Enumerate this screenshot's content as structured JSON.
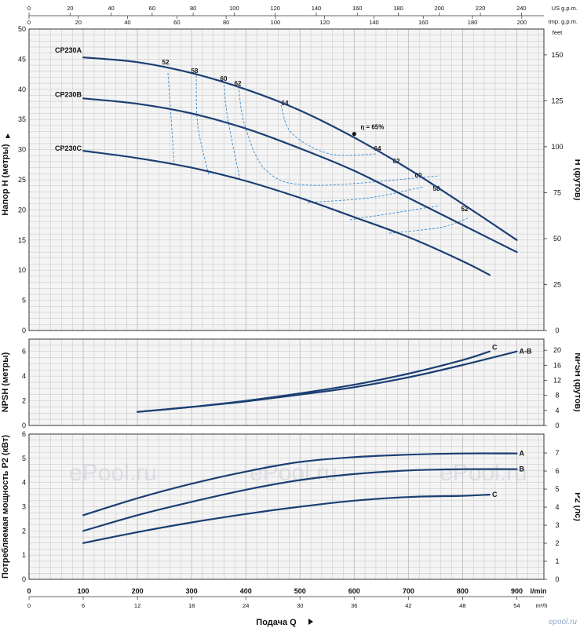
{
  "chart_data": [
    {
      "type": "line",
      "ylabel": "Напор H (метры)",
      "ylabel_right": "H (футов)",
      "ylim": [
        0,
        50
      ],
      "yticks": [
        0,
        5,
        10,
        15,
        20,
        25,
        30,
        35,
        40,
        45,
        50
      ],
      "yticks_right": [
        0,
        25,
        50,
        75,
        100,
        125,
        150
      ],
      "right_unit": "feet",
      "x_unit": "l/min",
      "series": [
        {
          "name": "CP230A",
          "x": [
            100,
            200,
            300,
            400,
            500,
            600,
            700,
            800,
            900
          ],
          "values": [
            45.3,
            44.5,
            42.7,
            40.0,
            36.5,
            32.0,
            26.8,
            21.0,
            15.0
          ]
        },
        {
          "name": "CP230B",
          "x": [
            100,
            200,
            300,
            400,
            500,
            600,
            700,
            800,
            900
          ],
          "values": [
            38.5,
            37.6,
            36.0,
            33.5,
            30.2,
            26.5,
            22.0,
            17.5,
            13.0
          ]
        },
        {
          "name": "CP230C",
          "x": [
            100,
            200,
            300,
            400,
            500,
            600,
            700,
            800,
            850
          ],
          "values": [
            29.8,
            28.6,
            27.0,
            24.8,
            22.0,
            18.8,
            15.5,
            11.5,
            9.2
          ]
        }
      ],
      "efficiency_marker": {
        "label": "η = 65%",
        "x": 600,
        "y": 32.6
      },
      "efficiency_labels": [
        "52",
        "58",
        "60",
        "62",
        "64",
        "64",
        "62",
        "60",
        "58",
        "52"
      ]
    },
    {
      "type": "line",
      "ylabel": "NPSH (метры)",
      "ylabel_right": "NPSH (футов)",
      "ylim": [
        0,
        7
      ],
      "yticks": [
        0,
        2,
        4,
        6
      ],
      "yticks_right": [
        0,
        4,
        8,
        12,
        16,
        20
      ],
      "series": [
        {
          "name": "C",
          "x": [
            200,
            300,
            400,
            500,
            600,
            700,
            800,
            850
          ],
          "values": [
            1.1,
            1.5,
            2.0,
            2.6,
            3.3,
            4.2,
            5.3,
            6.0
          ]
        },
        {
          "name": "A-B",
          "x": [
            200,
            300,
            400,
            500,
            600,
            700,
            800,
            900
          ],
          "values": [
            1.1,
            1.5,
            1.95,
            2.5,
            3.1,
            3.9,
            4.9,
            6.0
          ]
        }
      ]
    },
    {
      "type": "line",
      "ylabel": "Потребляемая мощность P2 (кВт)",
      "ylabel_right": "P2 (лс)",
      "ylim": [
        0,
        6
      ],
      "yticks": [
        0,
        1,
        2,
        3,
        4,
        5,
        6
      ],
      "yticks_right": [
        0,
        1,
        2,
        3,
        4,
        5,
        6,
        7
      ],
      "xlabel": "Подача Q",
      "xlim": [
        0,
        950
      ],
      "xticks_lmin": [
        0,
        100,
        200,
        300,
        400,
        500,
        600,
        700,
        800,
        900
      ],
      "xticks_m3h": [
        0,
        6,
        12,
        18,
        24,
        30,
        36,
        42,
        48,
        54
      ],
      "x_unit_bottom": "m³/h",
      "xticks_us_gpm": [
        0,
        20,
        40,
        60,
        80,
        100,
        120,
        140,
        160,
        180,
        200,
        220,
        240
      ],
      "xticks_imp_gpm": [
        0,
        20,
        40,
        60,
        80,
        100,
        120,
        140,
        160,
        180,
        200
      ],
      "top_unit_us": "US g.p.m.",
      "top_unit_imp": "Imp. g.p.m.",
      "series": [
        {
          "name": "A",
          "x": [
            100,
            200,
            300,
            400,
            500,
            600,
            700,
            800,
            900
          ],
          "values": [
            2.65,
            3.35,
            3.95,
            4.45,
            4.85,
            5.05,
            5.15,
            5.2,
            5.2
          ]
        },
        {
          "name": "B",
          "x": [
            100,
            200,
            300,
            400,
            500,
            600,
            700,
            800,
            900
          ],
          "values": [
            2.0,
            2.65,
            3.2,
            3.7,
            4.1,
            4.35,
            4.5,
            4.55,
            4.55
          ]
        },
        {
          "name": "C",
          "x": [
            100,
            200,
            300,
            400,
            500,
            600,
            700,
            800,
            850
          ],
          "values": [
            1.5,
            1.95,
            2.35,
            2.7,
            3.0,
            3.25,
            3.4,
            3.45,
            3.5
          ]
        }
      ]
    }
  ],
  "watermark": "ePool.ru",
  "brand": "epool.ru",
  "colors": {
    "curve": "#1b3f73",
    "efficiency": "#3a8ccf",
    "grid": "#b8b8b8",
    "bg": "#f4f4f4"
  }
}
